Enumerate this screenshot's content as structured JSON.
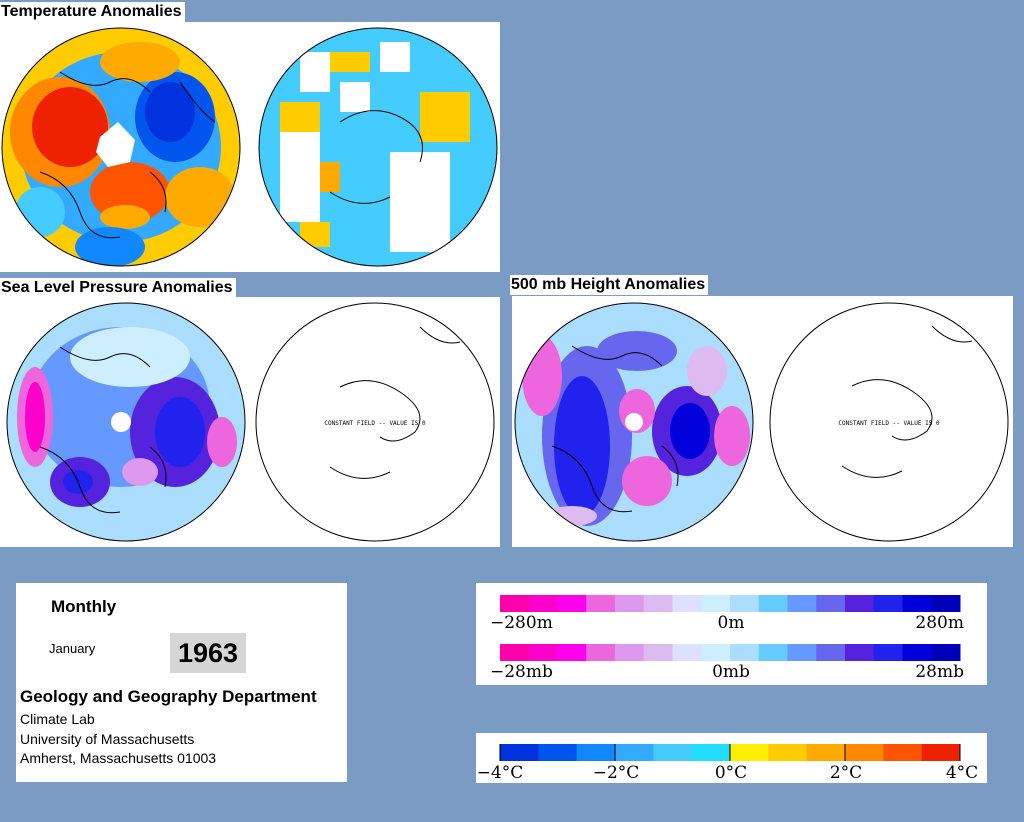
{
  "titles": {
    "temperature": "Temperature Anomalies",
    "slp": "Sea Level Pressure Anomalies",
    "height500": "500 mb Height Anomalies"
  },
  "map_annotations": {
    "slp_right": "CONSTANT FIELD -- VALUE IS 0",
    "height_right": "CONSTANT FIELD -- VALUE IS 0"
  },
  "info": {
    "period": "Monthly",
    "month": "January",
    "year": "1963",
    "department": "Geology and Geography Department",
    "lab": "Climate Lab",
    "university": "University of Massachusetts",
    "city": "Amherst, Massachusetts 01003"
  },
  "colorbars": {
    "height": {
      "min": "−280m",
      "mid": "0m",
      "max": "280m"
    },
    "pressure": {
      "min": "−28mb",
      "mid": "0mb",
      "max": "28mb"
    },
    "temperature": {
      "ticks": [
        "−4°C",
        "−2°C",
        "0°C",
        "2°C",
        "4°C"
      ]
    }
  },
  "palettes": {
    "anomaly": [
      "#ff00aa",
      "#ff00cc",
      "#ff00ee",
      "#ee66dd",
      "#dd99ee",
      "#ddbbf0",
      "#dde0ff",
      "#cceeff",
      "#aaddff",
      "#66ccff",
      "#6699ff",
      "#6666ee",
      "#5522dd",
      "#2222ee",
      "#0000dd",
      "#0000bb"
    ],
    "temperature": [
      "#0033dd",
      "#0055ee",
      "#1188ff",
      "#33aaff",
      "#44ccff",
      "#22ddff",
      "#ffee00",
      "#ffcc00",
      "#ffaa00",
      "#ff8800",
      "#ff5500",
      "#ee2200"
    ]
  }
}
